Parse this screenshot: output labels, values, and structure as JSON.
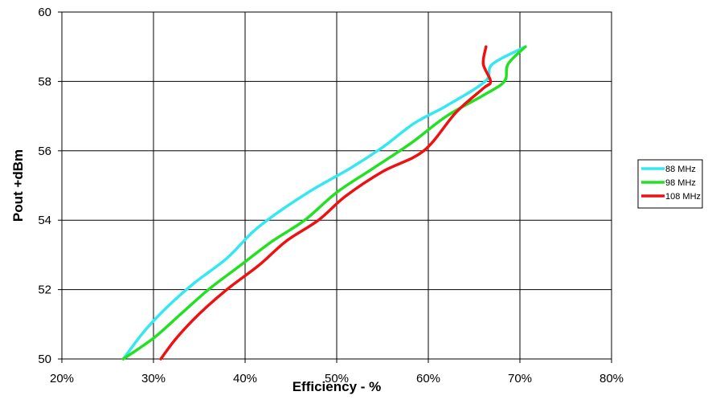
{
  "chart_data": {
    "type": "line",
    "title": "",
    "xlabel": "Efficiency - %",
    "ylabel": "Pout +dBm",
    "xlim": [
      20,
      80
    ],
    "ylim": [
      50,
      60
    ],
    "grid": true,
    "legend_position": "right",
    "x_ticks": [
      {
        "value": 20,
        "label": "20%"
      },
      {
        "value": 30,
        "label": "30%"
      },
      {
        "value": 40,
        "label": "40%"
      },
      {
        "value": 50,
        "label": "50%"
      },
      {
        "value": 60,
        "label": "60%"
      },
      {
        "value": 70,
        "label": "70%"
      },
      {
        "value": 80,
        "label": "80%"
      }
    ],
    "y_ticks": [
      {
        "value": 50,
        "label": "50"
      },
      {
        "value": 52,
        "label": "52"
      },
      {
        "value": 54,
        "label": "54"
      },
      {
        "value": 56,
        "label": "56"
      },
      {
        "value": 58,
        "label": "58"
      },
      {
        "value": 60,
        "label": "60"
      }
    ],
    "series": [
      {
        "name": "88 MHz",
        "color": "#33e8f0",
        "points": [
          [
            26.7,
            50.0
          ],
          [
            29.0,
            50.8
          ],
          [
            31.5,
            51.5
          ],
          [
            34.5,
            52.2
          ],
          [
            38.0,
            52.9
          ],
          [
            41.0,
            53.7
          ],
          [
            44.0,
            54.3
          ],
          [
            47.5,
            54.9
          ],
          [
            51.5,
            55.5
          ],
          [
            55.0,
            56.1
          ],
          [
            58.5,
            56.8
          ],
          [
            62.0,
            57.3
          ],
          [
            66.2,
            58.0
          ],
          [
            67.0,
            58.5
          ],
          [
            70.6,
            59.0
          ]
        ]
      },
      {
        "name": "98 MHz",
        "color": "#22e022",
        "points": [
          [
            26.7,
            50.0
          ],
          [
            30.0,
            50.6
          ],
          [
            33.0,
            51.3
          ],
          [
            36.0,
            52.0
          ],
          [
            39.5,
            52.7
          ],
          [
            43.0,
            53.4
          ],
          [
            46.5,
            54.0
          ],
          [
            50.0,
            54.8
          ],
          [
            54.0,
            55.5
          ],
          [
            58.0,
            56.2
          ],
          [
            62.0,
            57.0
          ],
          [
            66.0,
            57.6
          ],
          [
            68.3,
            58.0
          ],
          [
            68.7,
            58.5
          ],
          [
            70.6,
            59.0
          ]
        ]
      },
      {
        "name": "108 MHz",
        "color": "#ee1111",
        "points": [
          [
            30.8,
            50.0
          ],
          [
            32.5,
            50.6
          ],
          [
            35.0,
            51.3
          ],
          [
            38.0,
            52.0
          ],
          [
            41.5,
            52.7
          ],
          [
            44.5,
            53.4
          ],
          [
            48.0,
            54.0
          ],
          [
            51.0,
            54.7
          ],
          [
            55.0,
            55.4
          ],
          [
            59.5,
            56.0
          ],
          [
            63.0,
            57.1
          ],
          [
            66.0,
            57.8
          ],
          [
            66.8,
            58.0
          ],
          [
            66.0,
            58.5
          ],
          [
            66.3,
            59.0
          ]
        ]
      }
    ]
  }
}
